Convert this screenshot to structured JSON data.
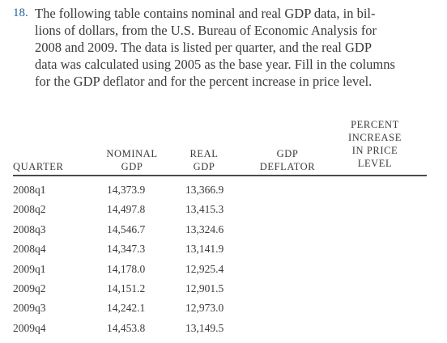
{
  "problem": {
    "number": "18.",
    "lines": [
      "The following table contains nominal and real GDP data, in bil-",
      "lions of dollars, from the U.S. Bureau of Economic Analysis for",
      "2008 and 2009. The data is listed per quarter, and the real GDP",
      "data was calculated using 2005 as the base year. Fill in the columns",
      "for the GDP deflator and for the percent increase in price level."
    ]
  },
  "table": {
    "headers": {
      "quarter": [
        "QUARTER"
      ],
      "nominal": [
        "NOMINAL",
        "GDP"
      ],
      "real": [
        "REAL",
        "GDP"
      ],
      "deflator": [
        "GDP",
        "DEFLATOR"
      ],
      "percent": [
        "PERCENT",
        "INCREASE",
        "IN PRICE",
        "LEVEL"
      ]
    },
    "rows": [
      {
        "quarter": "2008q1",
        "nominal": "14,373.9",
        "real": "13,366.9"
      },
      {
        "quarter": "2008q2",
        "nominal": "14,497.8",
        "real": "13,415.3"
      },
      {
        "quarter": "2008q3",
        "nominal": "14,546.7",
        "real": "13,324.6"
      },
      {
        "quarter": "2008q4",
        "nominal": "14,347.3",
        "real": "13,141.9"
      },
      {
        "quarter": "2009q1",
        "nominal": "14,178.0",
        "real": "12,925.4"
      },
      {
        "quarter": "2009q2",
        "nominal": "14,151.2",
        "real": "12,901.5"
      },
      {
        "quarter": "2009q3",
        "nominal": "14,242.1",
        "real": "12,973.0"
      },
      {
        "quarter": "2009q4",
        "nominal": "14,453.8",
        "real": "13,149.5"
      }
    ]
  },
  "colors": {
    "problem_number": "#1f5f9c",
    "text": "#3a3a3a",
    "rule": "#4a4a4a"
  }
}
